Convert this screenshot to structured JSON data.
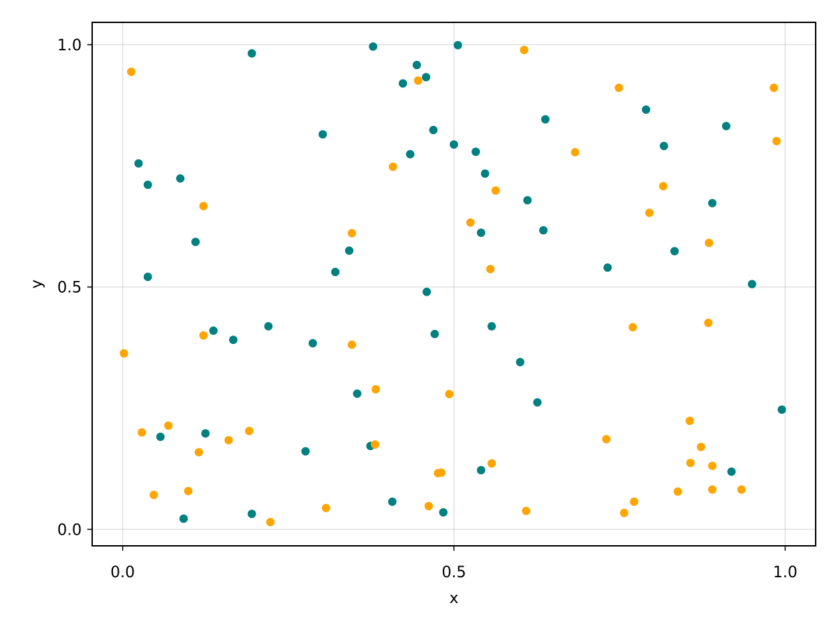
{
  "chart_data": {
    "type": "scatter",
    "title": "",
    "xlabel": "x",
    "ylabel": "y",
    "xlim": [
      -0.046,
      1.046
    ],
    "ylim": [
      -0.034,
      1.046
    ],
    "xticks": [
      0.0,
      0.5,
      1.0
    ],
    "xtick_labels": [
      "0.0",
      "0.5",
      "1.0"
    ],
    "yticks": [
      0.0,
      0.5,
      1.0
    ],
    "ytick_labels": [
      "0.0",
      "0.5",
      "1.0"
    ],
    "grid": true,
    "legend": "none",
    "series": [
      {
        "color": "#008080",
        "points": [
          [
            0.024,
            0.755
          ],
          [
            0.038,
            0.711
          ],
          [
            0.038,
            0.521
          ],
          [
            0.057,
            0.191
          ],
          [
            0.087,
            0.724
          ],
          [
            0.092,
            0.022
          ],
          [
            0.11,
            0.593
          ],
          [
            0.125,
            0.198
          ],
          [
            0.137,
            0.41
          ],
          [
            0.167,
            0.391
          ],
          [
            0.195,
            0.982
          ],
          [
            0.195,
            0.032
          ],
          [
            0.22,
            0.419
          ],
          [
            0.276,
            0.161
          ],
          [
            0.287,
            0.384
          ],
          [
            0.302,
            0.815
          ],
          [
            0.321,
            0.531
          ],
          [
            0.342,
            0.575
          ],
          [
            0.354,
            0.28
          ],
          [
            0.374,
            0.172
          ],
          [
            0.378,
            0.996
          ],
          [
            0.407,
            0.057
          ],
          [
            0.423,
            0.92
          ],
          [
            0.434,
            0.774
          ],
          [
            0.444,
            0.958
          ],
          [
            0.458,
            0.933
          ],
          [
            0.459,
            0.49
          ],
          [
            0.469,
            0.824
          ],
          [
            0.471,
            0.403
          ],
          [
            0.484,
            0.035
          ],
          [
            0.5,
            0.794
          ],
          [
            0.506,
            0.999
          ],
          [
            0.533,
            0.779
          ],
          [
            0.541,
            0.612
          ],
          [
            0.541,
            0.122
          ],
          [
            0.547,
            0.734
          ],
          [
            0.557,
            0.419
          ],
          [
            0.6,
            0.345
          ],
          [
            0.611,
            0.679
          ],
          [
            0.626,
            0.262
          ],
          [
            0.635,
            0.617
          ],
          [
            0.638,
            0.846
          ],
          [
            0.732,
            0.54
          ],
          [
            0.79,
            0.866
          ],
          [
            0.817,
            0.791
          ],
          [
            0.833,
            0.574
          ],
          [
            0.89,
            0.673
          ],
          [
            0.911,
            0.832
          ],
          [
            0.919,
            0.119
          ],
          [
            0.95,
            0.506
          ],
          [
            0.995,
            0.247
          ]
        ]
      },
      {
        "color": "#FFA500",
        "points": [
          [
            0.002,
            0.363
          ],
          [
            0.013,
            0.944
          ],
          [
            0.029,
            0.2
          ],
          [
            0.047,
            0.071
          ],
          [
            0.069,
            0.214
          ],
          [
            0.099,
            0.079
          ],
          [
            0.115,
            0.159
          ],
          [
            0.122,
            0.667
          ],
          [
            0.122,
            0.4
          ],
          [
            0.16,
            0.184
          ],
          [
            0.191,
            0.203
          ],
          [
            0.223,
            0.015
          ],
          [
            0.307,
            0.044
          ],
          [
            0.346,
            0.611
          ],
          [
            0.346,
            0.381
          ],
          [
            0.381,
            0.175
          ],
          [
            0.382,
            0.289
          ],
          [
            0.408,
            0.748
          ],
          [
            0.446,
            0.926
          ],
          [
            0.462,
            0.048
          ],
          [
            0.476,
            0.116
          ],
          [
            0.481,
            0.117
          ],
          [
            0.493,
            0.279
          ],
          [
            0.525,
            0.633
          ],
          [
            0.555,
            0.537
          ],
          [
            0.557,
            0.136
          ],
          [
            0.563,
            0.699
          ],
          [
            0.606,
            0.989
          ],
          [
            0.609,
            0.038
          ],
          [
            0.683,
            0.778
          ],
          [
            0.73,
            0.186
          ],
          [
            0.749,
            0.911
          ],
          [
            0.757,
            0.034
          ],
          [
            0.77,
            0.417
          ],
          [
            0.772,
            0.057
          ],
          [
            0.795,
            0.653
          ],
          [
            0.816,
            0.708
          ],
          [
            0.838,
            0.078
          ],
          [
            0.856,
            0.224
          ],
          [
            0.857,
            0.137
          ],
          [
            0.873,
            0.17
          ],
          [
            0.884,
            0.426
          ],
          [
            0.885,
            0.591
          ],
          [
            0.89,
            0.131
          ],
          [
            0.89,
            0.082
          ],
          [
            0.934,
            0.082
          ],
          [
            0.983,
            0.911
          ],
          [
            0.987,
            0.801
          ]
        ]
      }
    ]
  }
}
